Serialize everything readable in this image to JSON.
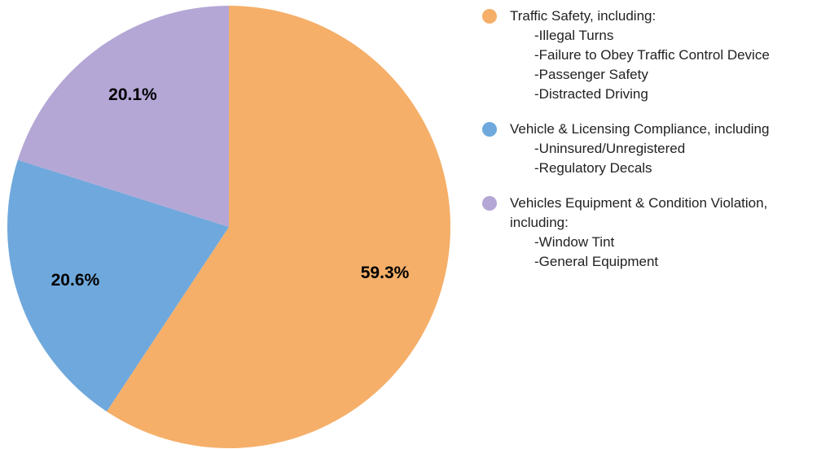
{
  "chart_data": {
    "type": "pie",
    "categories": [
      "Traffic Safety, including:",
      "Vehicle & Licensing Compliance, including",
      "Vehicles Equipment & Condition Violation, including:"
    ],
    "legend_details": [
      [
        "-Illegal Turns",
        "-Failure to Obey Traffic Control Device",
        "-Passenger Safety",
        "-Distracted Driving"
      ],
      [
        "-Uninsured/Unregistered",
        "-Regulatory Decals"
      ],
      [
        "-Window Tint",
        "-General Equipment"
      ]
    ],
    "values": [
      59.3,
      20.6,
      20.1
    ],
    "value_labels": [
      "59.3%",
      "20.6%",
      "20.1%"
    ],
    "colors": [
      "#f5af69",
      "#6fa8dc",
      "#b4a7d6"
    ],
    "legend": "right"
  }
}
